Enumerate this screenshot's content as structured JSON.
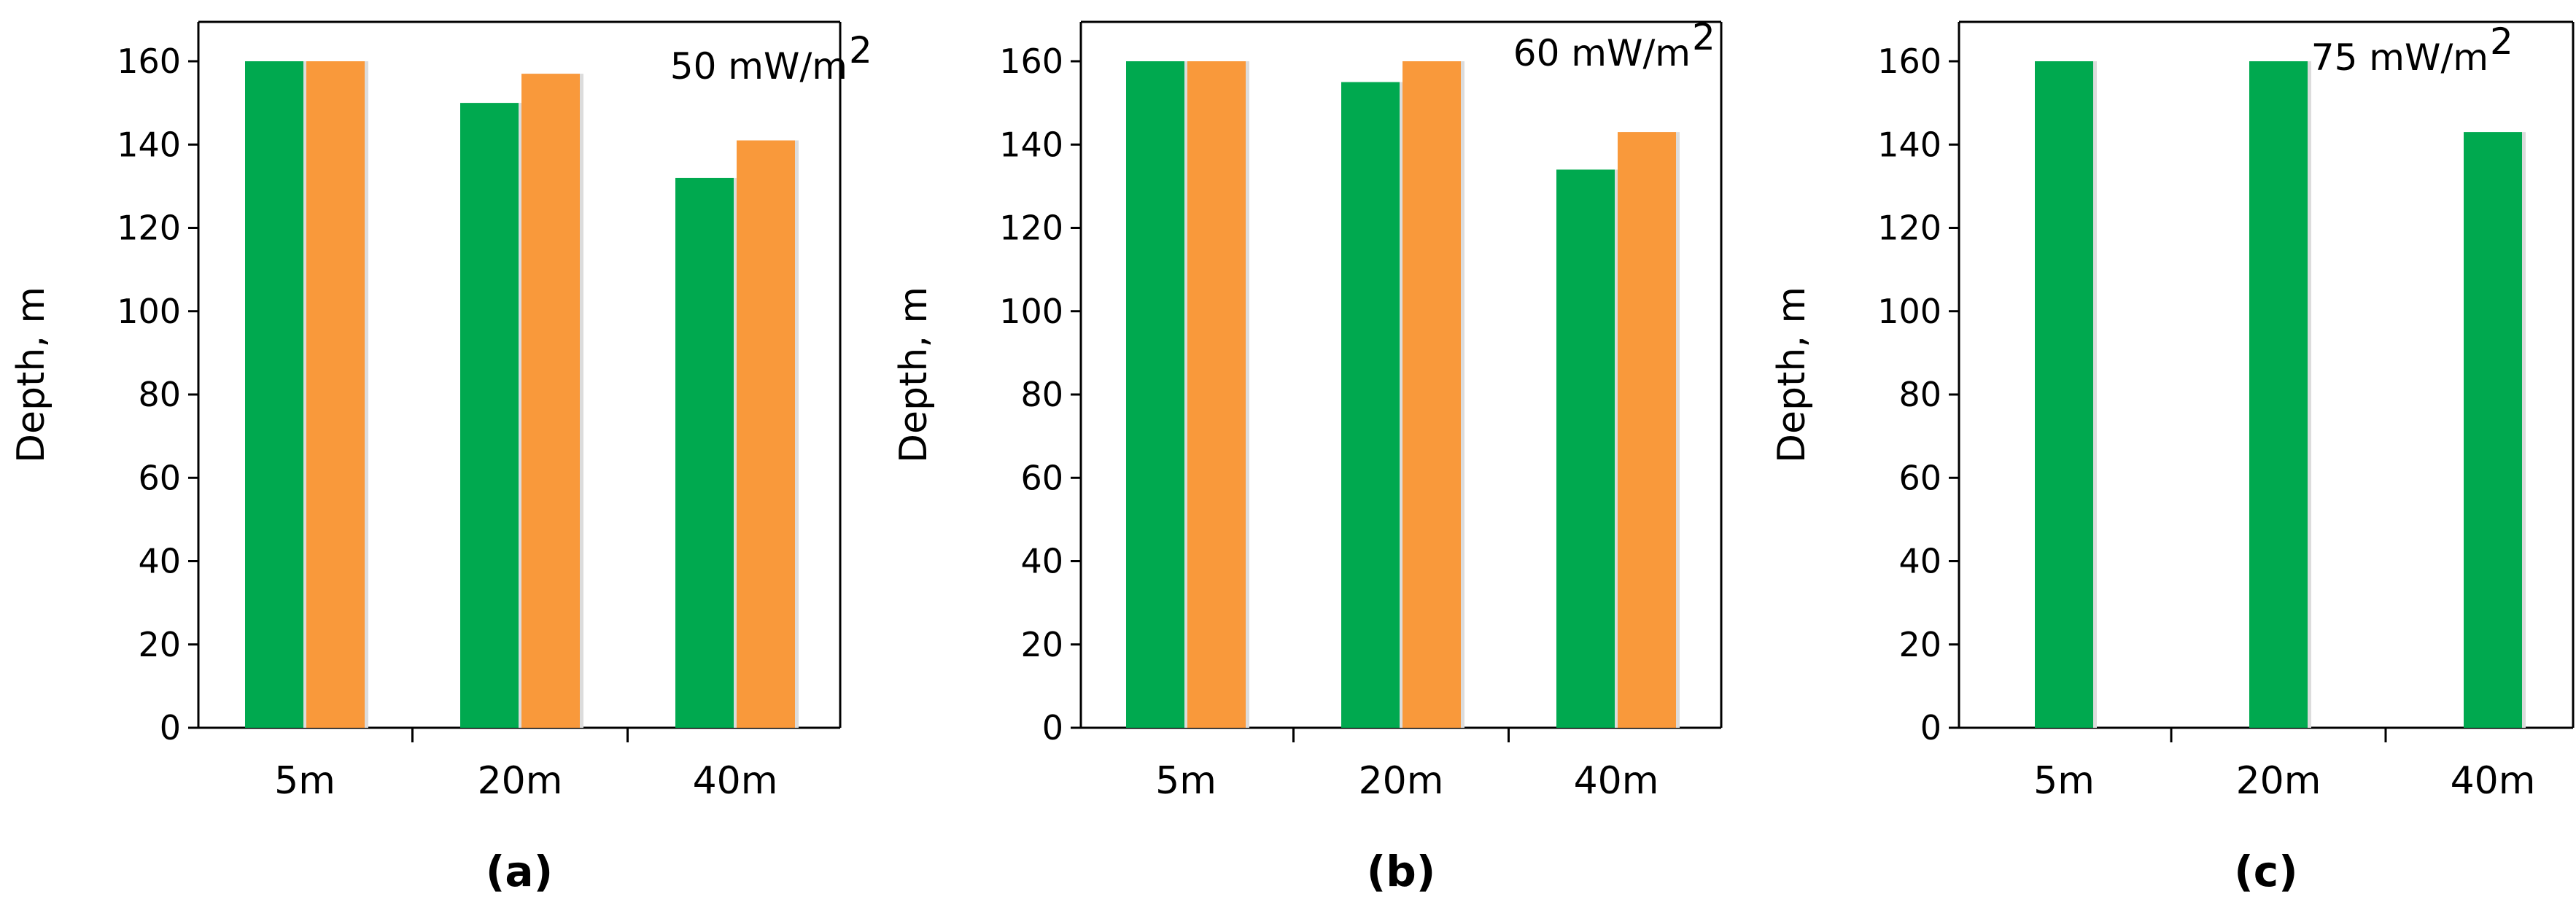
{
  "colors": {
    "series_1": "#00a94f",
    "series_2": "#f9993b",
    "axis": "#000000"
  },
  "chart_data": [
    {
      "type": "bar",
      "panel_label": "(a)",
      "annotation": "50 mW/m",
      "annotation_sup": "2",
      "ylabel": "Depth, m",
      "xlabel": "",
      "ylim": [
        0,
        170
      ],
      "yticks": [
        "0",
        "20",
        "40",
        "60",
        "80",
        "100",
        "120",
        "140",
        "160"
      ],
      "categories": [
        "5m",
        "20m",
        "40m"
      ],
      "series": [
        {
          "name": "series 1",
          "values": [
            160,
            150,
            132
          ]
        },
        {
          "name": "series 2",
          "values": [
            160,
            157,
            141
          ]
        }
      ]
    },
    {
      "type": "bar",
      "panel_label": "(b)",
      "annotation": "60 mW/m",
      "annotation_sup": "2",
      "ylabel": "Depth, m",
      "xlabel": "",
      "ylim": [
        0,
        170
      ],
      "yticks": [
        "0",
        "20",
        "40",
        "60",
        "80",
        "100",
        "120",
        "140",
        "160"
      ],
      "categories": [
        "5m",
        "20m",
        "40m"
      ],
      "series": [
        {
          "name": "series 1",
          "values": [
            160,
            155,
            134
          ]
        },
        {
          "name": "series 2",
          "values": [
            160,
            160,
            143
          ]
        }
      ]
    },
    {
      "type": "bar",
      "panel_label": "(c)",
      "annotation": "75 mW/m",
      "annotation_sup": "2",
      "ylabel": "Depth, m",
      "xlabel": "",
      "ylim": [
        0,
        170
      ],
      "yticks": [
        "0",
        "20",
        "40",
        "60",
        "80",
        "100",
        "120",
        "140",
        "160"
      ],
      "categories": [
        "5m",
        "20m",
        "40m"
      ],
      "series": [
        {
          "name": "series 1",
          "values": [
            160,
            160,
            143
          ]
        }
      ]
    }
  ]
}
